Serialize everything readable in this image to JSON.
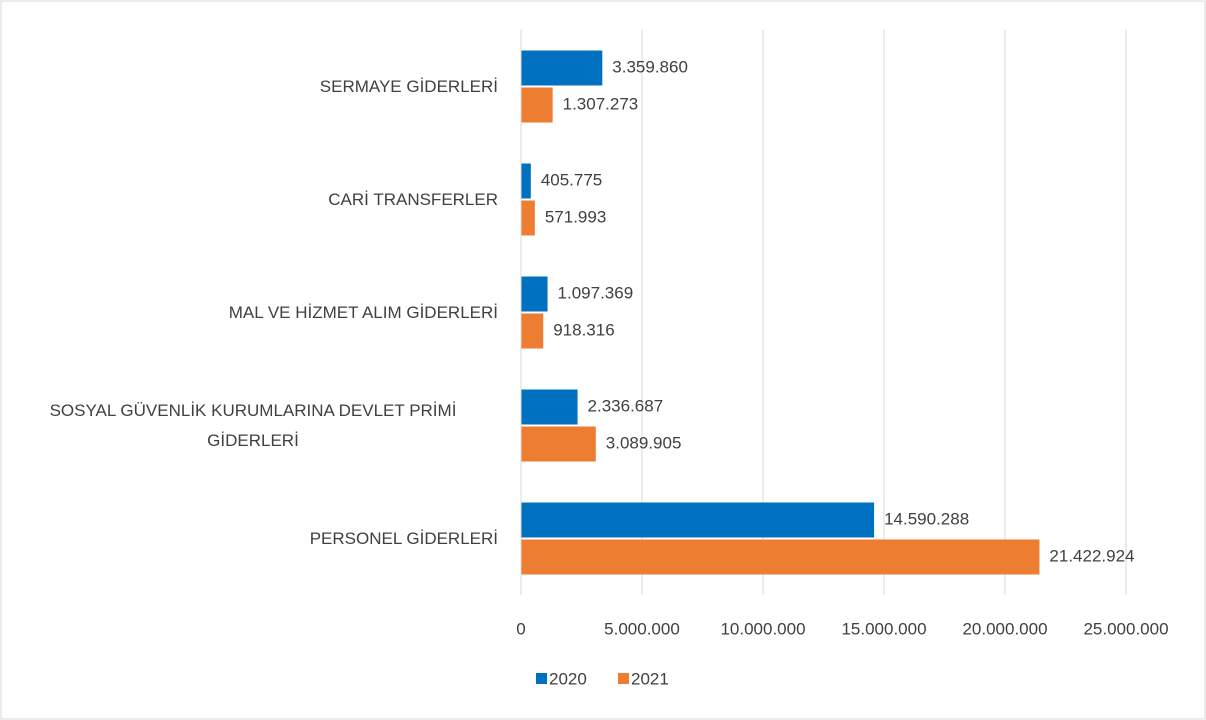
{
  "chart_data": {
    "type": "bar",
    "orientation": "horizontal",
    "categories": [
      "SERMAYE GİDERLERİ",
      "CARİ TRANSFERLER",
      "MAL VE HİZMET ALIM GİDERLERİ",
      "SOSYAL GÜVENLİK KURUMLARINA DEVLET PRİMİ GİDERLERİ",
      "PERSONEL GİDERLERİ"
    ],
    "series": [
      {
        "name": "2020",
        "color": "#0070c0",
        "values": [
          3359860,
          405775,
          1097369,
          2336687,
          14590288
        ],
        "value_labels": [
          "3.359.860",
          "405.775",
          "1.097.369",
          "2.336.687",
          "14.590.288"
        ]
      },
      {
        "name": "2021",
        "color": "#ed7d31",
        "values": [
          1307273,
          571993,
          918316,
          3089905,
          21422924
        ],
        "value_labels": [
          "1.307.273",
          "571.993",
          "918.316",
          "3.089.905",
          "21.422.924"
        ]
      }
    ],
    "xlim": [
      0,
      25000000
    ],
    "xticks": [
      0,
      {
        "value": 5000000,
        "label": "5.000.000"
      },
      {
        "value": 10000000,
        "label": "10.000.000"
      },
      {
        "value": 15000000,
        "label": "15.000.000"
      },
      {
        "value": 20000000,
        "label": "20.000.000"
      },
      {
        "value": 25000000,
        "label": "25.000.000"
      }
    ],
    "grid": true,
    "legend": "bottom"
  }
}
